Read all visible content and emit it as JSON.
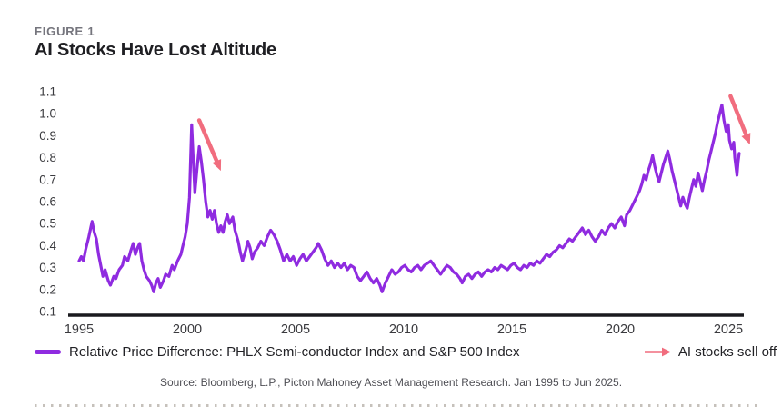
{
  "figure_label": "FIGURE 1",
  "title": "AI Stocks Have Lost Altitude",
  "source": "Source: Bloomberg, L.P., Picton Mahoney Asset Management Research. Jan 1995 to Jun 2025.",
  "legend": {
    "series_label": "Relative Price Difference: PHLX Semi-conductor Index and S&P 500 Index",
    "arrow_label": "AI stocks sell off"
  },
  "colors": {
    "line": "#8f2be0",
    "arrow": "#f16d7e",
    "axis": "#1a1a1e",
    "tick_text": "#3a3a3e",
    "figure_label": "#75757d",
    "title": "#1f1f23",
    "source_text": "#4f4f55",
    "dotted_rule": "#c6c1bb"
  },
  "chart_data": {
    "type": "line",
    "title": "AI Stocks Have Lost Altitude",
    "xlabel": "",
    "ylabel": "",
    "grid": false,
    "legend_position": "bottom",
    "x_range": [
      1995,
      2025.5
    ],
    "y_range": [
      0.1,
      1.1
    ],
    "x_tick_labels": [
      "1995",
      "2000",
      "2005",
      "2010",
      "2015",
      "2020",
      "2025"
    ],
    "y_tick_labels": [
      "1.1",
      "1.0",
      "0.9",
      "0.8",
      "0.7",
      "0.6",
      "0.5",
      "0.4",
      "0.3",
      "0.2",
      "0.1"
    ],
    "series": [
      {
        "name": "Relative Price Difference: PHLX Semi-conductor Index and S&P 500 Index",
        "points": [
          [
            1995.0,
            0.33
          ],
          [
            1995.1,
            0.35
          ],
          [
            1995.2,
            0.33
          ],
          [
            1995.3,
            0.38
          ],
          [
            1995.45,
            0.44
          ],
          [
            1995.6,
            0.51
          ],
          [
            1995.7,
            0.46
          ],
          [
            1995.8,
            0.43
          ],
          [
            1995.9,
            0.36
          ],
          [
            1996.0,
            0.31
          ],
          [
            1996.1,
            0.26
          ],
          [
            1996.2,
            0.29
          ],
          [
            1996.35,
            0.24
          ],
          [
            1996.45,
            0.22
          ],
          [
            1996.6,
            0.26
          ],
          [
            1996.7,
            0.25
          ],
          [
            1996.85,
            0.29
          ],
          [
            1997.0,
            0.31
          ],
          [
            1997.1,
            0.35
          ],
          [
            1997.25,
            0.33
          ],
          [
            1997.4,
            0.38
          ],
          [
            1997.5,
            0.41
          ],
          [
            1997.6,
            0.36
          ],
          [
            1997.7,
            0.39
          ],
          [
            1997.8,
            0.41
          ],
          [
            1997.9,
            0.33
          ],
          [
            1998.0,
            0.29
          ],
          [
            1998.1,
            0.26
          ],
          [
            1998.25,
            0.24
          ],
          [
            1998.35,
            0.22
          ],
          [
            1998.45,
            0.19
          ],
          [
            1998.55,
            0.23
          ],
          [
            1998.65,
            0.25
          ],
          [
            1998.75,
            0.21
          ],
          [
            1998.9,
            0.24
          ],
          [
            1999.0,
            0.27
          ],
          [
            1999.15,
            0.26
          ],
          [
            1999.3,
            0.31
          ],
          [
            1999.4,
            0.29
          ],
          [
            1999.55,
            0.33
          ],
          [
            1999.7,
            0.36
          ],
          [
            1999.8,
            0.4
          ],
          [
            1999.9,
            0.44
          ],
          [
            2000.0,
            0.5
          ],
          [
            2000.1,
            0.62
          ],
          [
            2000.2,
            0.95
          ],
          [
            2000.28,
            0.78
          ],
          [
            2000.35,
            0.64
          ],
          [
            2000.45,
            0.75
          ],
          [
            2000.55,
            0.85
          ],
          [
            2000.65,
            0.78
          ],
          [
            2000.75,
            0.7
          ],
          [
            2000.85,
            0.6
          ],
          [
            2000.95,
            0.53
          ],
          [
            2001.05,
            0.56
          ],
          [
            2001.15,
            0.52
          ],
          [
            2001.25,
            0.56
          ],
          [
            2001.35,
            0.5
          ],
          [
            2001.45,
            0.46
          ],
          [
            2001.55,
            0.49
          ],
          [
            2001.65,
            0.46
          ],
          [
            2001.75,
            0.51
          ],
          [
            2001.85,
            0.54
          ],
          [
            2001.95,
            0.5
          ],
          [
            2002.1,
            0.53
          ],
          [
            2002.2,
            0.47
          ],
          [
            2002.35,
            0.42
          ],
          [
            2002.45,
            0.37
          ],
          [
            2002.55,
            0.33
          ],
          [
            2002.7,
            0.38
          ],
          [
            2002.8,
            0.42
          ],
          [
            2002.9,
            0.39
          ],
          [
            2003.0,
            0.34
          ],
          [
            2003.1,
            0.37
          ],
          [
            2003.25,
            0.39
          ],
          [
            2003.4,
            0.42
          ],
          [
            2003.55,
            0.4
          ],
          [
            2003.7,
            0.44
          ],
          [
            2003.85,
            0.47
          ],
          [
            2004.0,
            0.45
          ],
          [
            2004.15,
            0.42
          ],
          [
            2004.3,
            0.38
          ],
          [
            2004.45,
            0.33
          ],
          [
            2004.6,
            0.36
          ],
          [
            2004.75,
            0.33
          ],
          [
            2004.9,
            0.35
          ],
          [
            2005.05,
            0.31
          ],
          [
            2005.2,
            0.34
          ],
          [
            2005.35,
            0.36
          ],
          [
            2005.5,
            0.33
          ],
          [
            2005.65,
            0.35
          ],
          [
            2005.8,
            0.37
          ],
          [
            2005.95,
            0.39
          ],
          [
            2006.05,
            0.41
          ],
          [
            2006.2,
            0.38
          ],
          [
            2006.35,
            0.34
          ],
          [
            2006.5,
            0.31
          ],
          [
            2006.65,
            0.33
          ],
          [
            2006.8,
            0.3
          ],
          [
            2006.95,
            0.32
          ],
          [
            2007.1,
            0.3
          ],
          [
            2007.25,
            0.32
          ],
          [
            2007.4,
            0.29
          ],
          [
            2007.55,
            0.31
          ],
          [
            2007.7,
            0.3
          ],
          [
            2007.85,
            0.26
          ],
          [
            2008.0,
            0.24
          ],
          [
            2008.15,
            0.26
          ],
          [
            2008.3,
            0.28
          ],
          [
            2008.45,
            0.25
          ],
          [
            2008.6,
            0.23
          ],
          [
            2008.75,
            0.25
          ],
          [
            2008.9,
            0.22
          ],
          [
            2009.0,
            0.19
          ],
          [
            2009.15,
            0.23
          ],
          [
            2009.3,
            0.26
          ],
          [
            2009.45,
            0.29
          ],
          [
            2009.6,
            0.27
          ],
          [
            2009.75,
            0.28
          ],
          [
            2009.9,
            0.3
          ],
          [
            2010.05,
            0.31
          ],
          [
            2010.2,
            0.29
          ],
          [
            2010.35,
            0.28
          ],
          [
            2010.5,
            0.3
          ],
          [
            2010.65,
            0.31
          ],
          [
            2010.8,
            0.29
          ],
          [
            2010.95,
            0.31
          ],
          [
            2011.1,
            0.32
          ],
          [
            2011.25,
            0.33
          ],
          [
            2011.4,
            0.31
          ],
          [
            2011.55,
            0.29
          ],
          [
            2011.7,
            0.27
          ],
          [
            2011.85,
            0.29
          ],
          [
            2012.0,
            0.31
          ],
          [
            2012.15,
            0.3
          ],
          [
            2012.3,
            0.28
          ],
          [
            2012.45,
            0.27
          ],
          [
            2012.6,
            0.25
          ],
          [
            2012.7,
            0.23
          ],
          [
            2012.85,
            0.26
          ],
          [
            2013.0,
            0.27
          ],
          [
            2013.15,
            0.25
          ],
          [
            2013.3,
            0.27
          ],
          [
            2013.45,
            0.28
          ],
          [
            2013.6,
            0.26
          ],
          [
            2013.75,
            0.28
          ],
          [
            2013.9,
            0.29
          ],
          [
            2014.05,
            0.28
          ],
          [
            2014.2,
            0.3
          ],
          [
            2014.35,
            0.29
          ],
          [
            2014.5,
            0.31
          ],
          [
            2014.65,
            0.3
          ],
          [
            2014.8,
            0.29
          ],
          [
            2014.95,
            0.31
          ],
          [
            2015.1,
            0.32
          ],
          [
            2015.25,
            0.3
          ],
          [
            2015.4,
            0.29
          ],
          [
            2015.55,
            0.31
          ],
          [
            2015.7,
            0.3
          ],
          [
            2015.85,
            0.32
          ],
          [
            2016.0,
            0.31
          ],
          [
            2016.15,
            0.33
          ],
          [
            2016.3,
            0.32
          ],
          [
            2016.45,
            0.34
          ],
          [
            2016.6,
            0.36
          ],
          [
            2016.75,
            0.35
          ],
          [
            2016.9,
            0.37
          ],
          [
            2017.05,
            0.38
          ],
          [
            2017.2,
            0.4
          ],
          [
            2017.35,
            0.39
          ],
          [
            2017.5,
            0.41
          ],
          [
            2017.65,
            0.43
          ],
          [
            2017.8,
            0.42
          ],
          [
            2017.95,
            0.44
          ],
          [
            2018.1,
            0.46
          ],
          [
            2018.25,
            0.48
          ],
          [
            2018.4,
            0.45
          ],
          [
            2018.55,
            0.47
          ],
          [
            2018.7,
            0.44
          ],
          [
            2018.85,
            0.42
          ],
          [
            2019.0,
            0.44
          ],
          [
            2019.15,
            0.47
          ],
          [
            2019.3,
            0.45
          ],
          [
            2019.45,
            0.48
          ],
          [
            2019.6,
            0.5
          ],
          [
            2019.75,
            0.48
          ],
          [
            2019.9,
            0.51
          ],
          [
            2020.05,
            0.53
          ],
          [
            2020.2,
            0.49
          ],
          [
            2020.3,
            0.54
          ],
          [
            2020.45,
            0.56
          ],
          [
            2020.6,
            0.59
          ],
          [
            2020.75,
            0.62
          ],
          [
            2020.9,
            0.65
          ],
          [
            2021.0,
            0.68
          ],
          [
            2021.1,
            0.72
          ],
          [
            2021.2,
            0.7
          ],
          [
            2021.3,
            0.74
          ],
          [
            2021.4,
            0.77
          ],
          [
            2021.5,
            0.81
          ],
          [
            2021.6,
            0.76
          ],
          [
            2021.7,
            0.72
          ],
          [
            2021.8,
            0.69
          ],
          [
            2021.9,
            0.73
          ],
          [
            2022.0,
            0.77
          ],
          [
            2022.1,
            0.8
          ],
          [
            2022.2,
            0.83
          ],
          [
            2022.3,
            0.79
          ],
          [
            2022.4,
            0.74
          ],
          [
            2022.5,
            0.7
          ],
          [
            2022.6,
            0.66
          ],
          [
            2022.7,
            0.62
          ],
          [
            2022.8,
            0.58
          ],
          [
            2022.9,
            0.62
          ],
          [
            2023.0,
            0.59
          ],
          [
            2023.1,
            0.57
          ],
          [
            2023.2,
            0.62
          ],
          [
            2023.3,
            0.66
          ],
          [
            2023.4,
            0.7
          ],
          [
            2023.5,
            0.67
          ],
          [
            2023.6,
            0.73
          ],
          [
            2023.7,
            0.69
          ],
          [
            2023.8,
            0.65
          ],
          [
            2023.9,
            0.7
          ],
          [
            2024.0,
            0.74
          ],
          [
            2024.1,
            0.79
          ],
          [
            2024.2,
            0.83
          ],
          [
            2024.3,
            0.87
          ],
          [
            2024.4,
            0.91
          ],
          [
            2024.5,
            0.96
          ],
          [
            2024.6,
            1.0
          ],
          [
            2024.7,
            1.04
          ],
          [
            2024.8,
            0.97
          ],
          [
            2024.9,
            0.92
          ],
          [
            2025.0,
            0.95
          ],
          [
            2025.05,
            0.88
          ],
          [
            2025.15,
            0.84
          ],
          [
            2025.25,
            0.87
          ],
          [
            2025.3,
            0.8
          ],
          [
            2025.4,
            0.72
          ],
          [
            2025.45,
            0.78
          ],
          [
            2025.5,
            0.82
          ]
        ]
      }
    ],
    "annotations": [
      {
        "label": "AI stocks sell off",
        "type": "arrow",
        "from": [
          2000.55,
          0.97
        ],
        "to": [
          2001.55,
          0.74
        ]
      },
      {
        "label": "AI stocks sell off",
        "type": "arrow",
        "from": [
          2025.1,
          1.08
        ],
        "to": [
          2026.0,
          0.86
        ]
      }
    ]
  }
}
